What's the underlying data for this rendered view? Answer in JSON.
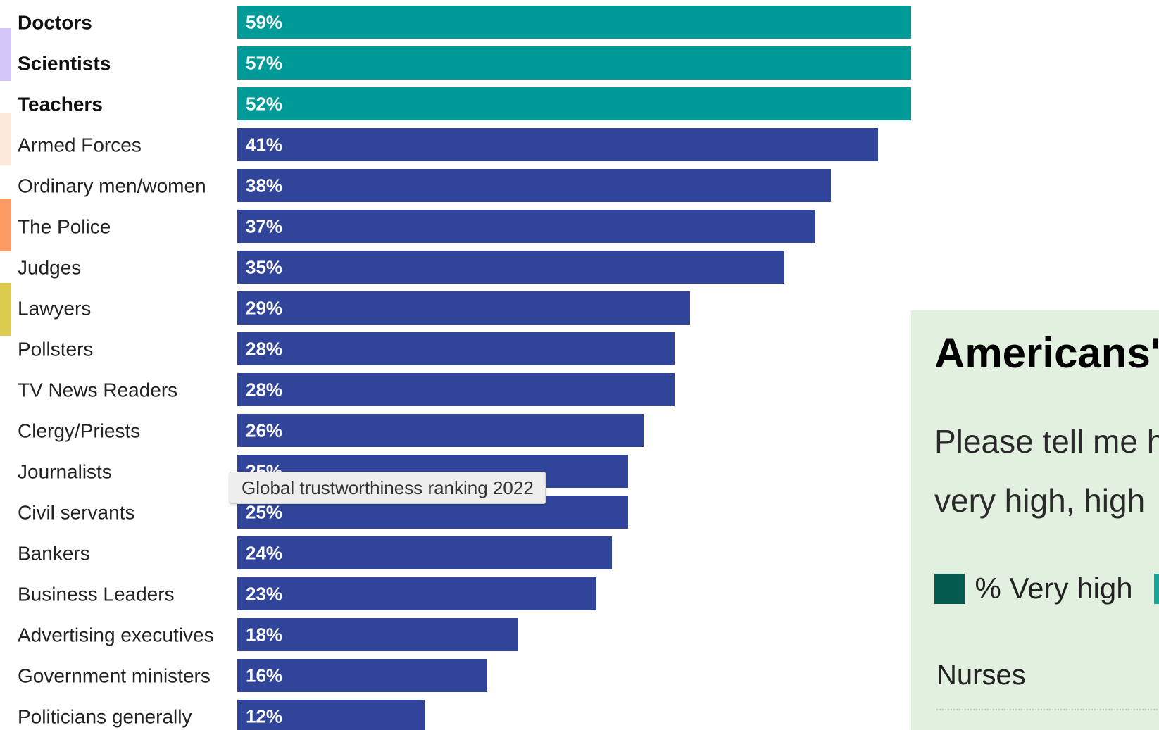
{
  "chart_data": {
    "type": "bar",
    "orientation": "horizontal",
    "title": "",
    "xlabel": "",
    "ylabel": "",
    "xlim": [
      0,
      59
    ],
    "grid": false,
    "categories": [
      "Doctors",
      "Scientists",
      "Teachers",
      "Armed Forces",
      "Ordinary men/women",
      "The Police",
      "Judges",
      "Lawyers",
      "Pollsters",
      "TV News Readers",
      "Clergy/Priests",
      "Journalists",
      "Civil servants",
      "Bankers",
      "Business Leaders",
      "Advertising executives",
      "Government ministers",
      "Politicians generally"
    ],
    "values": [
      59,
      57,
      52,
      41,
      38,
      37,
      35,
      29,
      28,
      28,
      26,
      25,
      25,
      24,
      23,
      18,
      16,
      12
    ],
    "value_labels": [
      "59%",
      "57%",
      "52%",
      "41%",
      "38%",
      "37%",
      "35%",
      "29%",
      "28%",
      "28%",
      "26%",
      "25%",
      "25%",
      "24%",
      "23%",
      "18%",
      "16%",
      "12%"
    ],
    "highlighted_categories": [
      "Doctors",
      "Scientists",
      "Teachers"
    ],
    "colors": {
      "highlight": "#009b98",
      "default": "#30459a"
    }
  },
  "tooltip": {
    "text": "Global trustworthiness ranking 2022"
  },
  "accent_strips": [
    {
      "color": "#d4c6f6"
    },
    {
      "color": "#fde8dc"
    },
    {
      "color": "#fc9a63"
    },
    {
      "color": "#dccb4c"
    }
  ],
  "side_panel": {
    "title": "Americans'",
    "subtitle_lines": [
      "Please tell me h",
      "very high, high"
    ],
    "legend": [
      {
        "label": "% Very high",
        "color": "#035c4f"
      },
      {
        "label": "",
        "color": "#1aa496"
      }
    ],
    "first_row_label": "Nurses",
    "background": "#e2f0df"
  }
}
